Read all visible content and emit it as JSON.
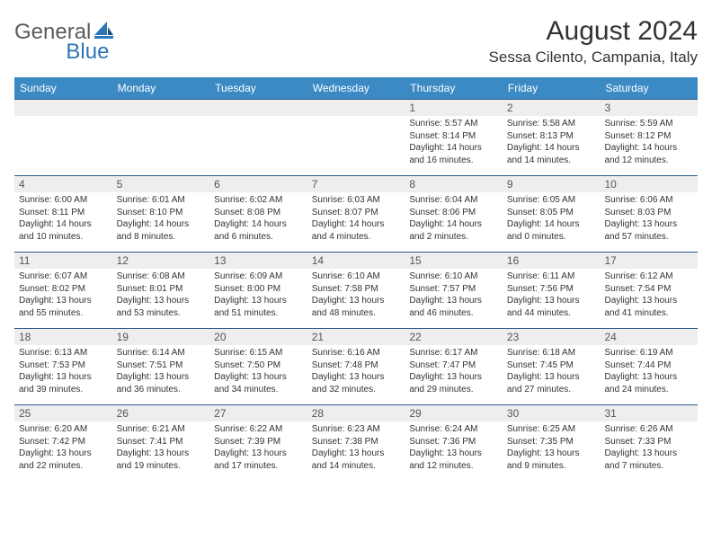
{
  "logo": {
    "text1": "General",
    "text2": "Blue"
  },
  "title": "August 2024",
  "location": "Sessa Cilento, Campania, Italy",
  "colors": {
    "header_bg": "#3b8ac4",
    "header_text": "#ffffff",
    "divider": "#2e5c8a",
    "daynum_band": "#eeeeee",
    "text": "#333333",
    "logo_gray": "#5a5a5a",
    "logo_blue": "#2e75b6"
  },
  "weekdays": [
    "Sunday",
    "Monday",
    "Tuesday",
    "Wednesday",
    "Thursday",
    "Friday",
    "Saturday"
  ],
  "weeks": [
    [
      {
        "n": "",
        "sr": "",
        "ss": "",
        "dl": ""
      },
      {
        "n": "",
        "sr": "",
        "ss": "",
        "dl": ""
      },
      {
        "n": "",
        "sr": "",
        "ss": "",
        "dl": ""
      },
      {
        "n": "",
        "sr": "",
        "ss": "",
        "dl": ""
      },
      {
        "n": "1",
        "sr": "Sunrise: 5:57 AM",
        "ss": "Sunset: 8:14 PM",
        "dl": "Daylight: 14 hours and 16 minutes."
      },
      {
        "n": "2",
        "sr": "Sunrise: 5:58 AM",
        "ss": "Sunset: 8:13 PM",
        "dl": "Daylight: 14 hours and 14 minutes."
      },
      {
        "n": "3",
        "sr": "Sunrise: 5:59 AM",
        "ss": "Sunset: 8:12 PM",
        "dl": "Daylight: 14 hours and 12 minutes."
      }
    ],
    [
      {
        "n": "4",
        "sr": "Sunrise: 6:00 AM",
        "ss": "Sunset: 8:11 PM",
        "dl": "Daylight: 14 hours and 10 minutes."
      },
      {
        "n": "5",
        "sr": "Sunrise: 6:01 AM",
        "ss": "Sunset: 8:10 PM",
        "dl": "Daylight: 14 hours and 8 minutes."
      },
      {
        "n": "6",
        "sr": "Sunrise: 6:02 AM",
        "ss": "Sunset: 8:08 PM",
        "dl": "Daylight: 14 hours and 6 minutes."
      },
      {
        "n": "7",
        "sr": "Sunrise: 6:03 AM",
        "ss": "Sunset: 8:07 PM",
        "dl": "Daylight: 14 hours and 4 minutes."
      },
      {
        "n": "8",
        "sr": "Sunrise: 6:04 AM",
        "ss": "Sunset: 8:06 PM",
        "dl": "Daylight: 14 hours and 2 minutes."
      },
      {
        "n": "9",
        "sr": "Sunrise: 6:05 AM",
        "ss": "Sunset: 8:05 PM",
        "dl": "Daylight: 14 hours and 0 minutes."
      },
      {
        "n": "10",
        "sr": "Sunrise: 6:06 AM",
        "ss": "Sunset: 8:03 PM",
        "dl": "Daylight: 13 hours and 57 minutes."
      }
    ],
    [
      {
        "n": "11",
        "sr": "Sunrise: 6:07 AM",
        "ss": "Sunset: 8:02 PM",
        "dl": "Daylight: 13 hours and 55 minutes."
      },
      {
        "n": "12",
        "sr": "Sunrise: 6:08 AM",
        "ss": "Sunset: 8:01 PM",
        "dl": "Daylight: 13 hours and 53 minutes."
      },
      {
        "n": "13",
        "sr": "Sunrise: 6:09 AM",
        "ss": "Sunset: 8:00 PM",
        "dl": "Daylight: 13 hours and 51 minutes."
      },
      {
        "n": "14",
        "sr": "Sunrise: 6:10 AM",
        "ss": "Sunset: 7:58 PM",
        "dl": "Daylight: 13 hours and 48 minutes."
      },
      {
        "n": "15",
        "sr": "Sunrise: 6:10 AM",
        "ss": "Sunset: 7:57 PM",
        "dl": "Daylight: 13 hours and 46 minutes."
      },
      {
        "n": "16",
        "sr": "Sunrise: 6:11 AM",
        "ss": "Sunset: 7:56 PM",
        "dl": "Daylight: 13 hours and 44 minutes."
      },
      {
        "n": "17",
        "sr": "Sunrise: 6:12 AM",
        "ss": "Sunset: 7:54 PM",
        "dl": "Daylight: 13 hours and 41 minutes."
      }
    ],
    [
      {
        "n": "18",
        "sr": "Sunrise: 6:13 AM",
        "ss": "Sunset: 7:53 PM",
        "dl": "Daylight: 13 hours and 39 minutes."
      },
      {
        "n": "19",
        "sr": "Sunrise: 6:14 AM",
        "ss": "Sunset: 7:51 PM",
        "dl": "Daylight: 13 hours and 36 minutes."
      },
      {
        "n": "20",
        "sr": "Sunrise: 6:15 AM",
        "ss": "Sunset: 7:50 PM",
        "dl": "Daylight: 13 hours and 34 minutes."
      },
      {
        "n": "21",
        "sr": "Sunrise: 6:16 AM",
        "ss": "Sunset: 7:48 PM",
        "dl": "Daylight: 13 hours and 32 minutes."
      },
      {
        "n": "22",
        "sr": "Sunrise: 6:17 AM",
        "ss": "Sunset: 7:47 PM",
        "dl": "Daylight: 13 hours and 29 minutes."
      },
      {
        "n": "23",
        "sr": "Sunrise: 6:18 AM",
        "ss": "Sunset: 7:45 PM",
        "dl": "Daylight: 13 hours and 27 minutes."
      },
      {
        "n": "24",
        "sr": "Sunrise: 6:19 AM",
        "ss": "Sunset: 7:44 PM",
        "dl": "Daylight: 13 hours and 24 minutes."
      }
    ],
    [
      {
        "n": "25",
        "sr": "Sunrise: 6:20 AM",
        "ss": "Sunset: 7:42 PM",
        "dl": "Daylight: 13 hours and 22 minutes."
      },
      {
        "n": "26",
        "sr": "Sunrise: 6:21 AM",
        "ss": "Sunset: 7:41 PM",
        "dl": "Daylight: 13 hours and 19 minutes."
      },
      {
        "n": "27",
        "sr": "Sunrise: 6:22 AM",
        "ss": "Sunset: 7:39 PM",
        "dl": "Daylight: 13 hours and 17 minutes."
      },
      {
        "n": "28",
        "sr": "Sunrise: 6:23 AM",
        "ss": "Sunset: 7:38 PM",
        "dl": "Daylight: 13 hours and 14 minutes."
      },
      {
        "n": "29",
        "sr": "Sunrise: 6:24 AM",
        "ss": "Sunset: 7:36 PM",
        "dl": "Daylight: 13 hours and 12 minutes."
      },
      {
        "n": "30",
        "sr": "Sunrise: 6:25 AM",
        "ss": "Sunset: 7:35 PM",
        "dl": "Daylight: 13 hours and 9 minutes."
      },
      {
        "n": "31",
        "sr": "Sunrise: 6:26 AM",
        "ss": "Sunset: 7:33 PM",
        "dl": "Daylight: 13 hours and 7 minutes."
      }
    ]
  ]
}
